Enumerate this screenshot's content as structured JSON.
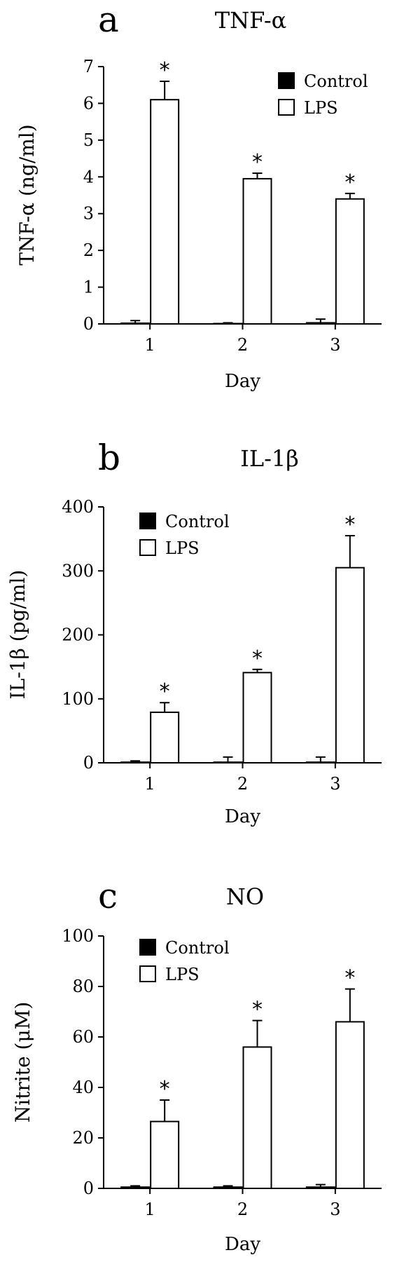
{
  "chart_data": [
    {
      "type": "bar",
      "panel_letter": "a",
      "title": "TNF-α",
      "xlabel": "Day",
      "ylabel": "TNF-α (ng/ml)",
      "categories": [
        "1",
        "2",
        "3"
      ],
      "ylim": [
        0,
        7
      ],
      "yticks": [
        0,
        1,
        2,
        3,
        4,
        5,
        6,
        7
      ],
      "legend_position": "top-right",
      "series": [
        {
          "name": "Control",
          "color": "#000000",
          "values": [
            0.02,
            0.01,
            0.03
          ],
          "errors": [
            0.07,
            0.02,
            0.1
          ]
        },
        {
          "name": "LPS",
          "color": "#ffffff",
          "values": [
            6.1,
            3.95,
            3.4
          ],
          "errors": [
            0.5,
            0.15,
            0.15
          ],
          "significance": [
            "*",
            "*",
            "*"
          ]
        }
      ]
    },
    {
      "type": "bar",
      "panel_letter": "b",
      "title": "IL-1β",
      "xlabel": "Day",
      "ylabel": "IL-1β (pg/ml)",
      "categories": [
        "1",
        "2",
        "3"
      ],
      "ylim": [
        0,
        400
      ],
      "yticks": [
        0,
        100,
        200,
        300,
        400
      ],
      "legend_position": "top-left",
      "series": [
        {
          "name": "Control",
          "color": "#000000",
          "values": [
            1,
            1,
            1
          ],
          "errors": [
            2,
            8,
            8
          ]
        },
        {
          "name": "LPS",
          "color": "#ffffff",
          "values": [
            79,
            141,
            305
          ],
          "errors": [
            15,
            5,
            50
          ],
          "significance": [
            "*",
            "*",
            "*"
          ]
        }
      ]
    },
    {
      "type": "bar",
      "panel_letter": "c",
      "title": "NO",
      "xlabel": "Day",
      "ylabel": "Nitrite (μM)",
      "categories": [
        "1",
        "2",
        "3"
      ],
      "ylim": [
        0,
        100
      ],
      "yticks": [
        0,
        20,
        40,
        60,
        80,
        100
      ],
      "legend_position": "top-left",
      "series": [
        {
          "name": "Control",
          "color": "#000000",
          "values": [
            0.5,
            0.5,
            0.5
          ],
          "errors": [
            0.5,
            0.5,
            1
          ]
        },
        {
          "name": "LPS",
          "color": "#ffffff",
          "values": [
            26.5,
            56,
            66
          ],
          "errors": [
            8.5,
            10.5,
            13
          ],
          "significance": [
            "*",
            "*",
            "*"
          ]
        }
      ]
    }
  ]
}
